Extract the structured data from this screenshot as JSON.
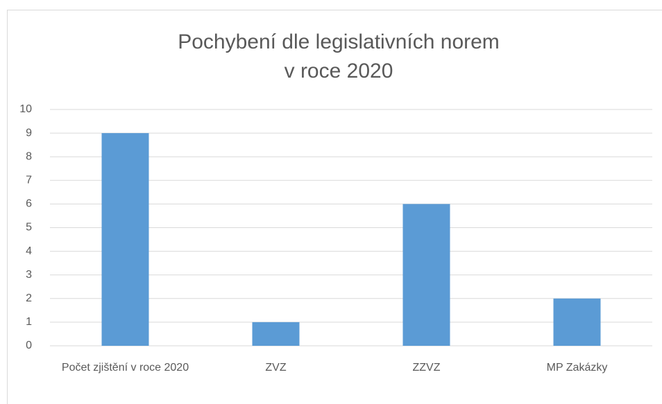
{
  "chart_data": {
    "type": "bar",
    "title": [
      "Pochybení dle legislativních norem",
      "v roce 2020"
    ],
    "categories": [
      "Počet zjištění v roce 2020",
      "ZVZ",
      "ZZVZ",
      "MP Zakázky"
    ],
    "values": [
      9,
      1,
      6,
      2
    ],
    "color": "#5b9bd5",
    "ylim": [
      0,
      10
    ],
    "yticks": [
      0,
      1,
      2,
      3,
      4,
      5,
      6,
      7,
      8,
      9,
      10
    ],
    "grid": true
  }
}
